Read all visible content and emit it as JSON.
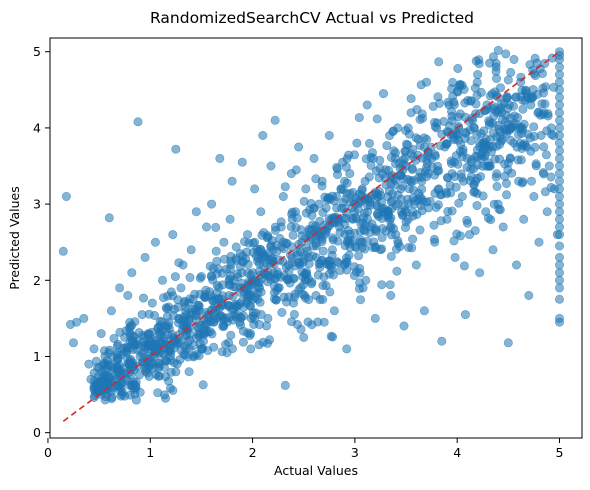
{
  "chart_data": {
    "type": "scatter",
    "title": "RandomizedSearchCV Actual vs Predicted",
    "xlabel": "Actual Values",
    "ylabel": "Predicted Values",
    "xlim": [
      0.02,
      5.22
    ],
    "ylim": [
      -0.07,
      5.18
    ],
    "xticks": [
      0,
      1,
      2,
      3,
      4,
      5
    ],
    "yticks": [
      0,
      1,
      2,
      3,
      4,
      5
    ],
    "grid": false,
    "legend": "none",
    "colors": {
      "points": "#1f77b4",
      "reference_line": "#d62728"
    },
    "point_alpha": 0.55,
    "series": [
      {
        "kind": "scatter",
        "description_points": "dense cloud following y≈x with a vertical cluster at x=5 (capped target)",
        "points": [
          [
            0.15,
            2.38
          ],
          [
            0.18,
            3.1
          ],
          [
            0.22,
            1.42
          ],
          [
            0.25,
            1.18
          ],
          [
            0.28,
            1.45
          ],
          [
            0.35,
            1.5
          ],
          [
            0.4,
            0.9
          ],
          [
            0.42,
            0.7
          ],
          [
            0.45,
            1.1
          ],
          [
            0.48,
            0.55
          ],
          [
            0.5,
            0.85
          ],
          [
            0.52,
            1.3
          ],
          [
            0.55,
            0.6
          ],
          [
            0.58,
            0.95
          ],
          [
            0.6,
            2.82
          ],
          [
            0.62,
            1.6
          ],
          [
            0.65,
            0.75
          ],
          [
            0.68,
            1.05
          ],
          [
            0.7,
            1.9
          ],
          [
            0.72,
            0.65
          ],
          [
            0.75,
            1.25
          ],
          [
            0.78,
            1.8
          ],
          [
            0.8,
            0.9
          ],
          [
            0.82,
            2.1
          ],
          [
            0.85,
            1.15
          ],
          [
            0.88,
            4.08
          ],
          [
            0.9,
            1.0
          ],
          [
            0.92,
            1.55
          ],
          [
            0.95,
            2.3
          ],
          [
            0.98,
            1.3
          ],
          [
            1.0,
            1.1
          ],
          [
            1.02,
            1.7
          ],
          [
            1.05,
            2.5
          ],
          [
            1.08,
            0.85
          ],
          [
            1.1,
            1.4
          ],
          [
            1.12,
            2.0
          ],
          [
            1.15,
            1.2
          ],
          [
            1.18,
            1.65
          ],
          [
            1.2,
            0.95
          ],
          [
            1.22,
            2.6
          ],
          [
            1.25,
            3.72
          ],
          [
            1.28,
            1.5
          ],
          [
            1.3,
            1.9
          ],
          [
            1.32,
            2.2
          ],
          [
            1.35,
            1.35
          ],
          [
            1.38,
            0.8
          ],
          [
            1.4,
            2.4
          ],
          [
            1.42,
            1.75
          ],
          [
            1.45,
            2.9
          ],
          [
            1.48,
            1.6
          ],
          [
            1.5,
            2.05
          ],
          [
            1.52,
            1.2
          ],
          [
            1.55,
            2.7
          ],
          [
            1.58,
            1.85
          ],
          [
            1.6,
            3.0
          ],
          [
            1.62,
            1.45
          ],
          [
            1.65,
            2.25
          ],
          [
            1.68,
            3.6
          ],
          [
            1.7,
            1.7
          ],
          [
            1.72,
            2.5
          ],
          [
            1.75,
            1.05
          ],
          [
            1.78,
            2.8
          ],
          [
            1.8,
            3.3
          ],
          [
            1.82,
            2.0
          ],
          [
            1.85,
            1.55
          ],
          [
            1.88,
            2.35
          ],
          [
            1.9,
            3.55
          ],
          [
            1.92,
            1.9
          ],
          [
            1.95,
            2.6
          ],
          [
            1.98,
            1.3
          ],
          [
            2.0,
            2.1
          ],
          [
            2.02,
            3.2
          ],
          [
            2.05,
            1.75
          ],
          [
            2.08,
            2.9
          ],
          [
            2.1,
            3.9
          ],
          [
            2.12,
            2.3
          ],
          [
            2.15,
            1.5
          ],
          [
            2.18,
            3.5
          ],
          [
            2.2,
            2.4
          ],
          [
            2.22,
            4.1
          ],
          [
            2.25,
            1.9
          ],
          [
            2.28,
            2.7
          ],
          [
            2.3,
            3.1
          ],
          [
            2.32,
            0.62
          ],
          [
            2.35,
            2.2
          ],
          [
            2.38,
            3.4
          ],
          [
            2.4,
            1.7
          ],
          [
            2.42,
            2.9
          ],
          [
            2.45,
            3.75
          ],
          [
            2.48,
            2.5
          ],
          [
            2.5,
            1.25
          ],
          [
            2.52,
            3.2
          ],
          [
            2.55,
            2.3
          ],
          [
            2.58,
            2.85
          ],
          [
            2.6,
            3.6
          ],
          [
            2.62,
            1.8
          ],
          [
            2.65,
            2.6
          ],
          [
            2.68,
            3.3
          ],
          [
            2.7,
            1.45
          ],
          [
            2.72,
            2.95
          ],
          [
            2.75,
            3.9
          ],
          [
            2.78,
            2.4
          ],
          [
            2.8,
            1.6
          ],
          [
            2.82,
            3.1
          ],
          [
            2.85,
            2.7
          ],
          [
            2.88,
            3.55
          ],
          [
            2.9,
            2.2
          ],
          [
            2.92,
            1.1
          ],
          [
            2.95,
            3.4
          ],
          [
            2.98,
            2.8
          ],
          [
            3.0,
            3.0
          ],
          [
            3.02,
            3.8
          ],
          [
            3.05,
            2.5
          ],
          [
            3.08,
            1.9
          ],
          [
            3.1,
            3.3
          ],
          [
            3.12,
            4.3
          ],
          [
            3.15,
            2.7
          ],
          [
            3.18,
            3.6
          ],
          [
            3.2,
            1.5
          ],
          [
            3.22,
            3.1
          ],
          [
            3.25,
            2.4
          ],
          [
            3.28,
            4.45
          ],
          [
            3.3,
            3.45
          ],
          [
            3.32,
            2.9
          ],
          [
            3.35,
            1.8
          ],
          [
            3.38,
            3.7
          ],
          [
            3.4,
            2.6
          ],
          [
            3.42,
            4.0
          ],
          [
            3.45,
            3.2
          ],
          [
            3.48,
            1.4
          ],
          [
            3.5,
            3.5
          ],
          [
            3.52,
            2.8
          ],
          [
            3.55,
            4.2
          ],
          [
            3.58,
            3.0
          ],
          [
            3.6,
            2.2
          ],
          [
            3.62,
            3.85
          ],
          [
            3.65,
            3.35
          ],
          [
            3.68,
            1.6
          ],
          [
            3.7,
            4.6
          ],
          [
            3.72,
            2.95
          ],
          [
            3.75,
            3.6
          ],
          [
            3.78,
            2.5
          ],
          [
            3.8,
            4.0
          ],
          [
            3.82,
            3.2
          ],
          [
            3.85,
            1.2
          ],
          [
            3.88,
            3.75
          ],
          [
            3.9,
            2.8
          ],
          [
            3.92,
            4.3
          ],
          [
            3.95,
            3.4
          ],
          [
            3.98,
            2.3
          ],
          [
            4.0,
            3.9
          ],
          [
            4.02,
            4.55
          ],
          [
            4.05,
            3.1
          ],
          [
            4.08,
            1.55
          ],
          [
            4.1,
            3.6
          ],
          [
            4.12,
            2.6
          ],
          [
            4.15,
            4.1
          ],
          [
            4.18,
            3.3
          ],
          [
            4.2,
            4.7
          ],
          [
            4.22,
            2.1
          ],
          [
            4.25,
            3.8
          ],
          [
            4.28,
            2.9
          ],
          [
            4.3,
            4.25
          ],
          [
            4.32,
            3.5
          ],
          [
            4.35,
            2.4
          ],
          [
            4.38,
            4.8
          ],
          [
            4.4,
            3.0
          ],
          [
            4.42,
            3.95
          ],
          [
            4.45,
            2.7
          ],
          [
            4.48,
            4.4
          ],
          [
            4.5,
            1.18
          ],
          [
            4.52,
            3.6
          ],
          [
            4.55,
            4.05
          ],
          [
            4.58,
            2.2
          ],
          [
            4.6,
            3.3
          ],
          [
            4.62,
            4.6
          ],
          [
            4.65,
            2.8
          ],
          [
            4.68,
            3.75
          ],
          [
            4.7,
            1.8
          ],
          [
            4.72,
            4.3
          ],
          [
            4.75,
            3.1
          ],
          [
            4.78,
            4.85
          ],
          [
            4.8,
            2.5
          ],
          [
            4.82,
            3.9
          ],
          [
            4.85,
            4.2
          ],
          [
            4.88,
            2.9
          ],
          [
            4.9,
            3.5
          ],
          [
            4.92,
            4.0
          ],
          [
            4.95,
            3.2
          ],
          [
            4.98,
            2.6
          ],
          [
            5.0,
            5.0
          ],
          [
            5.0,
            4.95
          ],
          [
            5.0,
            4.9
          ],
          [
            5.0,
            4.8
          ],
          [
            5.0,
            4.7
          ],
          [
            5.0,
            4.6
          ],
          [
            5.0,
            4.5
          ],
          [
            5.0,
            4.4
          ],
          [
            5.0,
            4.3
          ],
          [
            5.0,
            4.2
          ],
          [
            5.0,
            4.1
          ],
          [
            5.0,
            4.0
          ],
          [
            5.0,
            3.9
          ],
          [
            5.0,
            3.8
          ],
          [
            5.0,
            3.7
          ],
          [
            5.0,
            3.6
          ],
          [
            5.0,
            3.5
          ],
          [
            5.0,
            3.4
          ],
          [
            5.0,
            3.3
          ],
          [
            5.0,
            3.2
          ],
          [
            5.0,
            3.1
          ],
          [
            5.0,
            3.0
          ],
          [
            5.0,
            2.9
          ],
          [
            5.0,
            2.8
          ],
          [
            5.0,
            2.7
          ],
          [
            5.0,
            2.6
          ],
          [
            5.0,
            2.45
          ],
          [
            5.0,
            2.3
          ],
          [
            5.0,
            2.2
          ],
          [
            5.0,
            2.1
          ],
          [
            5.0,
            2.0
          ],
          [
            5.0,
            1.9
          ],
          [
            5.0,
            1.75
          ],
          [
            5.0,
            1.5
          ],
          [
            5.0,
            1.45
          ]
        ]
      },
      {
        "kind": "line",
        "style": "dashed",
        "x": [
          0.15,
          5.0
        ],
        "y": [
          0.15,
          5.0
        ]
      }
    ]
  }
}
